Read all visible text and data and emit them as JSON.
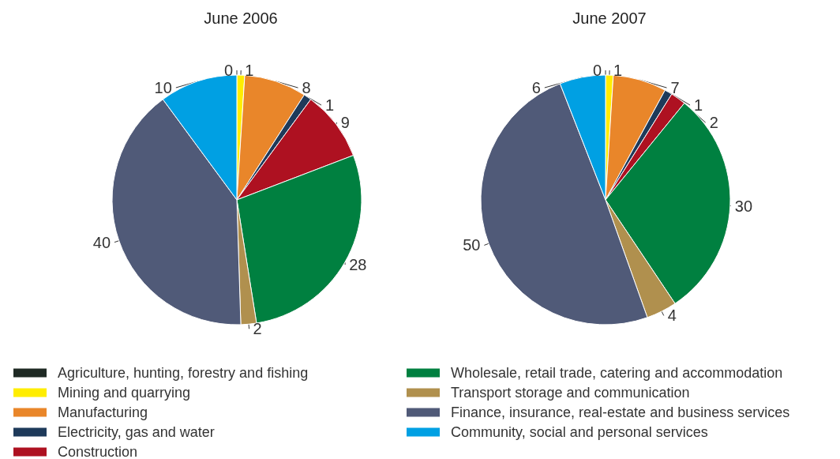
{
  "chart_data": [
    {
      "type": "pie",
      "title": "June 2006",
      "categories": [
        "Agriculture, hunting, forestry and fishing",
        "Mining and quarrying",
        "Manufacturing",
        "Electricity, gas and water",
        "Construction",
        "Wholesale, retail trade, catering and accommodation",
        "Transport storage and communication",
        "Finance, insurance, real-estate and business services",
        "Community, social and personal services"
      ],
      "values": [
        0,
        1,
        8,
        1,
        9,
        28,
        2,
        40,
        10
      ],
      "value_labels": [
        "0",
        "1",
        "8",
        "1",
        "9",
        "28",
        "2",
        "40",
        "10"
      ],
      "colors": [
        "#1f2a24",
        "#ffed00",
        "#e9862a",
        "#1e3a5a",
        "#ae1121",
        "#008040",
        "#b0904e",
        "#505a78",
        "#00a0e3"
      ],
      "legend": "bottom"
    },
    {
      "type": "pie",
      "title": "June 2007",
      "categories": [
        null,
        null,
        null,
        null,
        null,
        null,
        null,
        null,
        null
      ],
      "values": [
        0,
        1,
        7,
        1,
        2,
        30,
        4,
        50,
        6
      ],
      "value_labels": [
        "0",
        "1",
        "7",
        "1",
        "2",
        "30",
        "4",
        "50",
        "6"
      ],
      "colors": [
        "#1f2a24",
        "#ffed00",
        "#e9862a",
        "#1e3a5a",
        "#ae1121",
        "#008040",
        "#b0904e",
        "#505a78",
        "#00a0e3"
      ],
      "legend": false
    }
  ]
}
